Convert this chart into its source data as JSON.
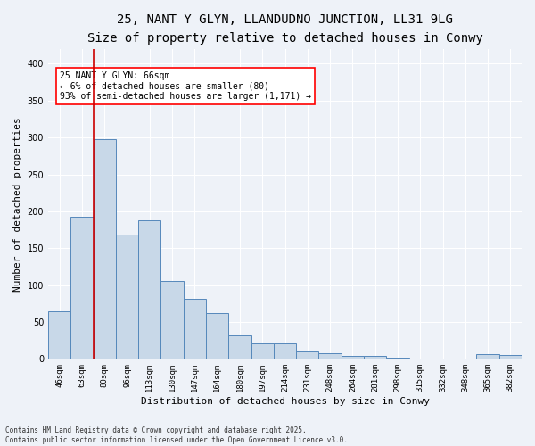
{
  "title_line1": "25, NANT Y GLYN, LLANDUDNO JUNCTION, LL31 9LG",
  "title_line2": "Size of property relative to detached houses in Conwy",
  "xlabel": "Distribution of detached houses by size in Conwy",
  "ylabel": "Number of detached properties",
  "categories": [
    "46sqm",
    "63sqm",
    "80sqm",
    "96sqm",
    "113sqm",
    "130sqm",
    "147sqm",
    "164sqm",
    "180sqm",
    "197sqm",
    "214sqm",
    "231sqm",
    "248sqm",
    "264sqm",
    "281sqm",
    "298sqm",
    "315sqm",
    "332sqm",
    "348sqm",
    "365sqm",
    "382sqm"
  ],
  "values": [
    65,
    193,
    298,
    169,
    188,
    106,
    81,
    62,
    32,
    21,
    21,
    10,
    8,
    4,
    4,
    2,
    0,
    0,
    1,
    6,
    5
  ],
  "bar_color": "#c8d8e8",
  "bar_edge_color": "#5588bb",
  "red_line_x": 1.5,
  "annotation_text": "25 NANT Y GLYN: 66sqm\n← 6% of detached houses are smaller (80)\n93% of semi-detached houses are larger (1,171) →",
  "annotation_box_color": "white",
  "annotation_box_edge_color": "red",
  "red_line_color": "#cc0000",
  "ylim": [
    0,
    420
  ],
  "yticks": [
    0,
    50,
    100,
    150,
    200,
    250,
    300,
    350,
    400
  ],
  "footer_line1": "Contains HM Land Registry data © Crown copyright and database right 2025.",
  "footer_line2": "Contains public sector information licensed under the Open Government Licence v3.0.",
  "background_color": "#eef2f8",
  "grid_color": "white",
  "title_fontsize": 10,
  "subtitle_fontsize": 9,
  "tick_fontsize": 6.5,
  "ylabel_fontsize": 8,
  "xlabel_fontsize": 8,
  "annotation_fontsize": 7,
  "footer_fontsize": 5.5
}
